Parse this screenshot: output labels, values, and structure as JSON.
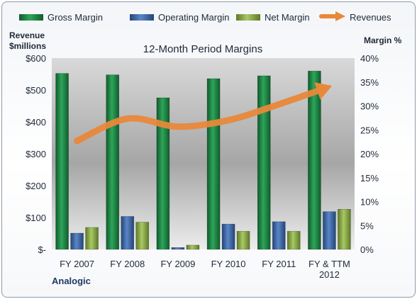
{
  "chart_data": {
    "type": "bar",
    "title": "12-Month Period Margins",
    "categories": [
      "FY 2007",
      "FY 2008",
      "FY 2009",
      "FY 2010",
      "FY 2011",
      "FY & TTM 2012"
    ],
    "category_lines": [
      [
        "FY 2007"
      ],
      [
        "FY 2008"
      ],
      [
        "FY 2009"
      ],
      [
        "FY 2010"
      ],
      [
        "FY 2011"
      ],
      [
        "FY & TTM",
        "2012"
      ]
    ],
    "left_axis": {
      "title_lines": [
        "Revenue",
        "$millions"
      ],
      "min": 0,
      "max": 600,
      "step": 100,
      "tick_labels": [
        "$-",
        "$100",
        "$200",
        "$300",
        "$400",
        "$500",
        "$600"
      ]
    },
    "right_axis": {
      "title": "Margin %",
      "min": 0,
      "max": 40,
      "step": 5,
      "tick_labels": [
        "0%",
        "5%",
        "10%",
        "15%",
        "20%",
        "25%",
        "30%",
        "35%",
        "40%"
      ]
    },
    "series": [
      {
        "name": "Gross Margin",
        "axis": "right",
        "kind": "bar",
        "color": "#1e8a46",
        "values": [
          36.8,
          36.5,
          31.7,
          35.7,
          36.3,
          37.3
        ]
      },
      {
        "name": "Operating Margin",
        "axis": "right",
        "kind": "bar",
        "color": "#3d69ac",
        "values": [
          3.4,
          6.9,
          0.4,
          5.3,
          5.8,
          7.9
        ]
      },
      {
        "name": "Net Margin",
        "axis": "right",
        "kind": "bar",
        "color": "#8fb04a",
        "values": [
          4.6,
          5.7,
          0.9,
          3.8,
          3.8,
          8.4
        ]
      },
      {
        "name": "Revenues",
        "axis": "left",
        "kind": "arrow-line",
        "color": "#e8883a",
        "values": [
          340,
          410,
          385,
          405,
          455,
          510
        ]
      }
    ],
    "grid": false,
    "legend_position": "top"
  },
  "company_label": "Analogic"
}
